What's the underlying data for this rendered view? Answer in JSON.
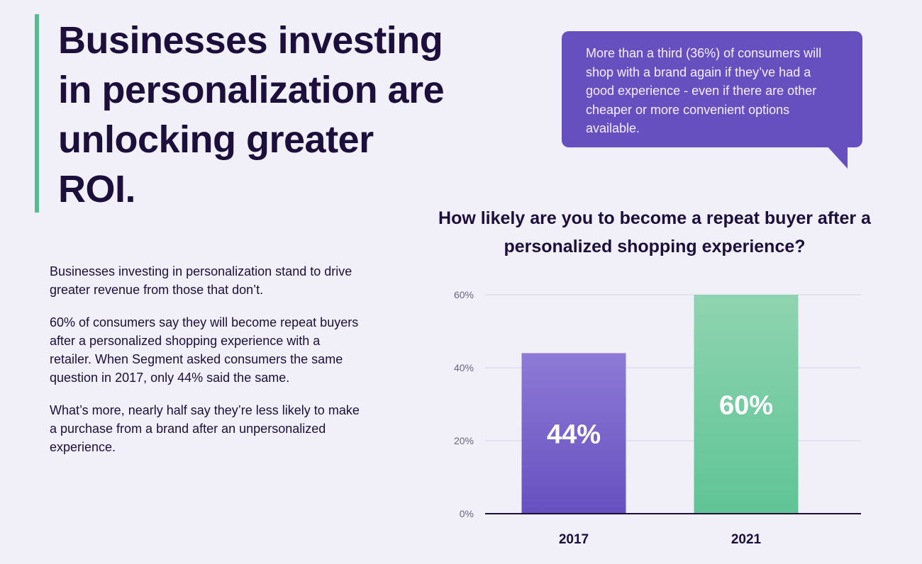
{
  "headline": "Businesses investing in personalization are unlocking greater ROI.",
  "body": {
    "paragraphs": [
      "Businesses investing in personalization stand to drive greater revenue from those that don’t.",
      "60% of consumers say they will become repeat buyers after a personalized shopping experience with a retailer. When Segment asked consumers the same question in 2017, only 44% said the same.",
      "What’s more, nearly half say they’re less likely to make a purchase from a brand after an unpersonalized experience."
    ]
  },
  "callout": {
    "text": "More than a third (36%) of consumers will shop with a brand again if they’ve had a good experience - even if there are other cheaper or more convenient options available."
  },
  "colors": {
    "accent": "#52bd8f",
    "purple": "#6650c0",
    "green": "#5fc496",
    "text": "#1c0f3b"
  },
  "chart_data": {
    "type": "bar",
    "title": "How likely are you to become a repeat buyer after a personalized shopping experience?",
    "categories": [
      "2017",
      "2021"
    ],
    "values": [
      44,
      60
    ],
    "data_labels": [
      "44%",
      "60%"
    ],
    "yticks": [
      "0%",
      "20%",
      "40%",
      "60%"
    ],
    "ytick_values": [
      0,
      20,
      40,
      60
    ],
    "ylim": [
      0,
      60
    ],
    "grid": true,
    "xlabel": "",
    "ylabel": ""
  }
}
